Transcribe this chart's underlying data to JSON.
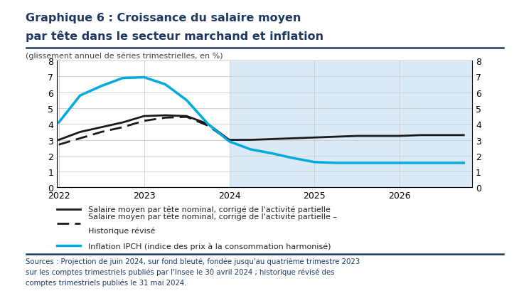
{
  "title_line1": "Graphique 6 : Croissance du salaire moyen",
  "title_line2": "par tête dans le secteur marchand et inflation",
  "subtitle": "(glissement annuel de séries trimestrielles, en %)",
  "ylim": [
    0,
    8
  ],
  "yticks": [
    0,
    1,
    2,
    3,
    4,
    5,
    6,
    7,
    8
  ],
  "background_color": "#ffffff",
  "forecast_bg_color": "#daeaf7",
  "forecast_start_year": 2024.0,
  "title_color": "#1f3864",
  "subtitle_color": "#444444",
  "salaire_x": [
    2022.0,
    2022.25,
    2022.5,
    2022.75,
    2023.0,
    2023.25,
    2023.5,
    2023.75,
    2024.0,
    2024.25,
    2024.5,
    2024.75,
    2025.0,
    2025.25,
    2025.5,
    2025.75,
    2026.0,
    2026.25,
    2026.5,
    2026.75
  ],
  "salaire_y": [
    3.0,
    3.5,
    3.8,
    4.1,
    4.5,
    4.55,
    4.5,
    4.0,
    3.0,
    3.0,
    3.05,
    3.1,
    3.15,
    3.2,
    3.25,
    3.25,
    3.25,
    3.3,
    3.3,
    3.3
  ],
  "salaire_hist_x": [
    2022.0,
    2022.25,
    2022.5,
    2022.75,
    2023.0,
    2023.25,
    2023.5,
    2023.75,
    2024.0
  ],
  "salaire_hist_y": [
    2.7,
    3.1,
    3.5,
    3.8,
    4.2,
    4.4,
    4.45,
    3.9,
    2.95
  ],
  "ipch_x": [
    2022.0,
    2022.25,
    2022.5,
    2022.75,
    2023.0,
    2023.25,
    2023.5,
    2023.75,
    2024.0,
    2024.25,
    2024.5,
    2024.75,
    2025.0,
    2025.25,
    2025.5,
    2025.75,
    2026.0,
    2026.25,
    2026.5,
    2026.75
  ],
  "ipch_y": [
    4.1,
    5.8,
    6.4,
    6.9,
    6.95,
    6.5,
    5.5,
    4.0,
    2.9,
    2.4,
    2.15,
    1.85,
    1.6,
    1.55,
    1.55,
    1.55,
    1.55,
    1.55,
    1.55,
    1.55
  ],
  "salaire_color": "#1a1a1a",
  "salaire_hist_color": "#1a1a1a",
  "ipch_color": "#00aadd",
  "legend_salaire": "Salaire moyen par tête nominal, corrigé de l'activité partielle",
  "legend_salaire_hist_l1": "Salaire moyen par tête nominal, corrigé de l'activité partielle –",
  "legend_salaire_hist_l2": "Historique révisé",
  "legend_ipch": "Inflation IPCH (indice des prix à la consommation harmonisé)",
  "source_text": "Sources : Projection de juin 2024, sur fond bleuté, fondée jusqu'au quatrième trimestre 2023\nsur les comptes trimestriels publiés par l'Insee le 30 avril 2024 ; historique révisé des\ncomptes trimestriels publiés le 31 mai 2024.",
  "source_color": "#1f3864",
  "xmin": 2022.0,
  "xmax": 2026.75,
  "xticks": [
    2022,
    2023,
    2024,
    2025,
    2026
  ],
  "xtick_labels": [
    "2022",
    "2023",
    "2024",
    "2025",
    "2026"
  ]
}
